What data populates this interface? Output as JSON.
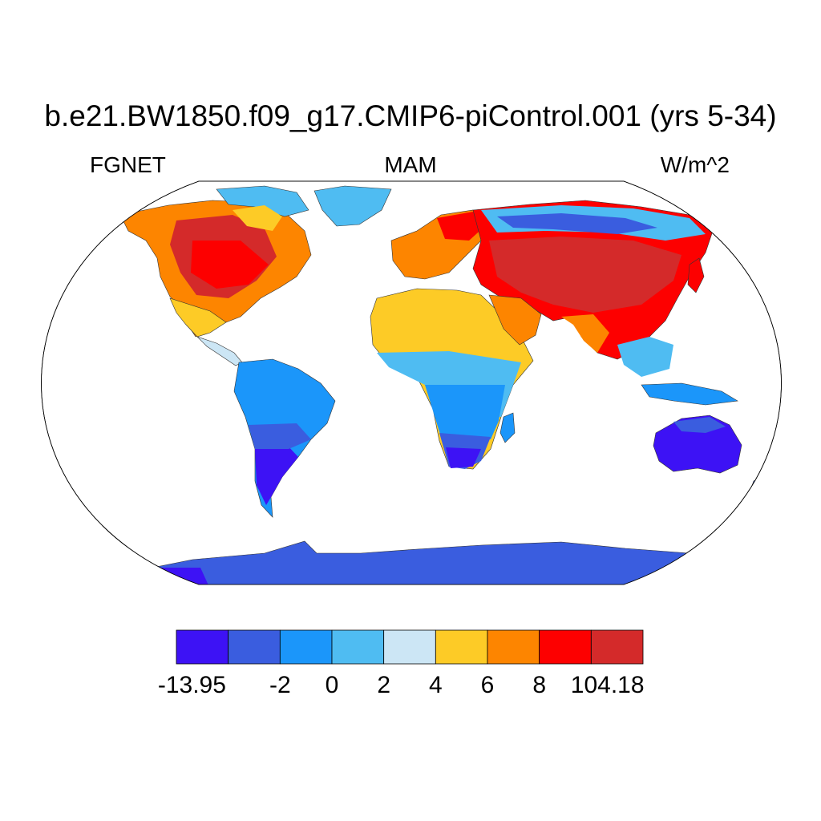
{
  "title": "b.e21.BW1850.f09_g17.CMIP6-piControl.001 (yrs 5-34)",
  "variable": "FGNET",
  "season": "MAM",
  "units": "W/m^2",
  "colorbar": {
    "colors": [
      "#3d12f5",
      "#3a5ddf",
      "#1b96fa",
      "#4fbcf2",
      "#cce6f5",
      "#fdcb26",
      "#fd8500",
      "#fd0000",
      "#d42a2a"
    ],
    "labels": [
      "-13.95",
      "-2",
      "0",
      "2",
      "4",
      "6",
      "8",
      "104.18"
    ]
  }
}
